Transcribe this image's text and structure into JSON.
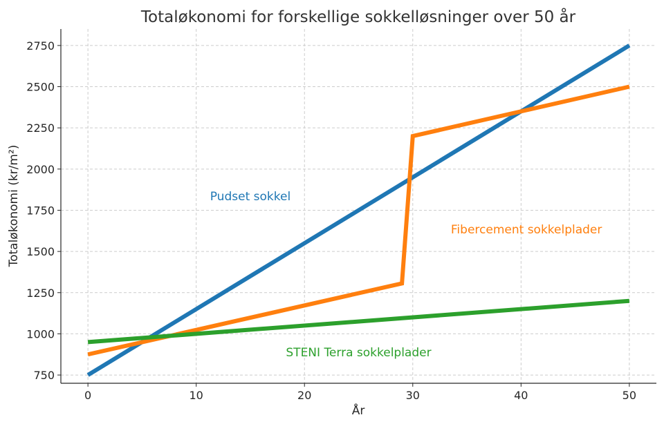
{
  "chart_data": {
    "type": "line",
    "title": "Totaløkonomi for forskellige sokkelløsninger over 50 år",
    "xlabel": "År",
    "ylabel": "Totaløkonomi (kr/m²)",
    "xlim": [
      -2.5,
      52.5
    ],
    "ylim": [
      700,
      2850
    ],
    "xticks": [
      0,
      10,
      20,
      30,
      40,
      50
    ],
    "yticks": [
      750,
      1000,
      1250,
      1500,
      1750,
      2000,
      2250,
      2500,
      2750
    ],
    "grid": true,
    "series": [
      {
        "name": "Pudset sokkel",
        "color": "#1f77b4",
        "points": [
          [
            0,
            750
          ],
          [
            50,
            2750
          ]
        ],
        "label_at": [
          15,
          1810
        ]
      },
      {
        "name": "Fibercement sokkelplader",
        "color": "#ff7f0e",
        "points": [
          [
            0,
            875
          ],
          [
            29,
            1306
          ],
          [
            30,
            2200
          ],
          [
            50,
            2500
          ]
        ],
        "label_at": [
          40.5,
          1610
        ]
      },
      {
        "name": "STENI Terra sokkelplader",
        "color": "#2ca02c",
        "points": [
          [
            0,
            950
          ],
          [
            50,
            1200
          ]
        ],
        "label_at": [
          25,
          863
        ]
      }
    ]
  }
}
